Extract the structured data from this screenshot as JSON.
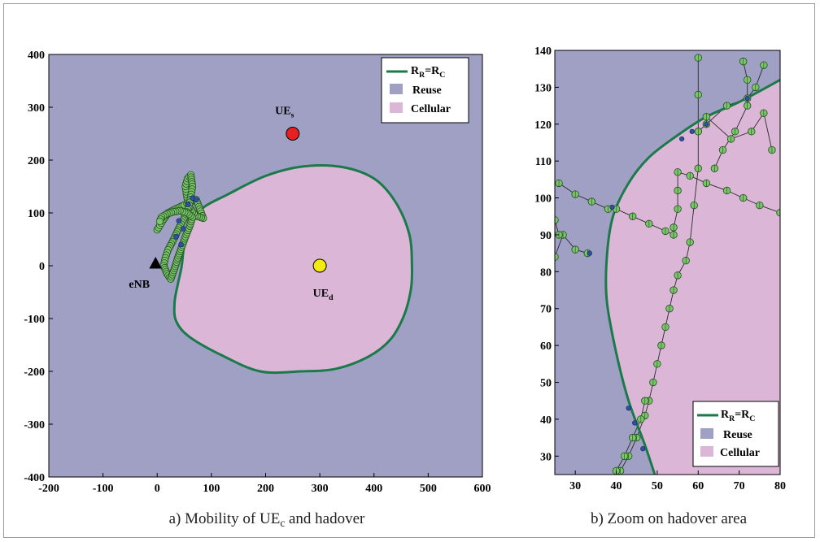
{
  "colors": {
    "reuse": "#a09fc4",
    "cellular": "#dcb6d6",
    "boundary": "#1a7a4a",
    "marker_green": "#7cc46a",
    "marker_blue": "#3050a0",
    "ue_s": "#e52121",
    "ue_d": "#f2ea10",
    "enb": "#000000"
  },
  "chart_data": [
    {
      "type": "scatter",
      "title": "",
      "caption": {
        "prefix": "a) Mobility of UE",
        "sub": "c",
        "suffix": " and hadover"
      },
      "xlim": [
        -200,
        600
      ],
      "ylim": [
        -400,
        400
      ],
      "xticks": [
        -200,
        -100,
        0,
        100,
        200,
        300,
        400,
        500,
        600
      ],
      "yticks": [
        -400,
        -300,
        -200,
        -100,
        0,
        100,
        200,
        300,
        400
      ],
      "regions": [
        {
          "name": "Reuse",
          "fill": "reuse"
        },
        {
          "name": "Cellular",
          "fill": "cellular"
        }
      ],
      "boundary_name": {
        "base": "R",
        "sub1": "R",
        "mid": "=R",
        "sub2": "C"
      },
      "boundary": [
        [
          470,
          0
        ],
        [
          465,
          60
        ],
        [
          440,
          120
        ],
        [
          400,
          165
        ],
        [
          340,
          187
        ],
        [
          270,
          188
        ],
        [
          200,
          170
        ],
        [
          130,
          135
        ],
        [
          85,
          110
        ],
        [
          62,
          80
        ],
        [
          50,
          40
        ],
        [
          45,
          -2
        ],
        [
          38,
          -35
        ],
        [
          32,
          -70
        ],
        [
          35,
          -105
        ],
        [
          60,
          -135
        ],
        [
          120,
          -170
        ],
        [
          190,
          -200
        ],
        [
          265,
          -200
        ],
        [
          330,
          -195
        ],
        [
          390,
          -172
        ],
        [
          430,
          -140
        ],
        [
          455,
          -95
        ],
        [
          468,
          -45
        ],
        [
          470,
          0
        ]
      ],
      "ue_s": {
        "label": {
          "base": "UE",
          "sub": "s"
        },
        "x": 250,
        "y": 250
      },
      "ue_d": {
        "label": {
          "base": "UE",
          "sub": "d"
        },
        "x": 300,
        "y": 0
      },
      "enb": {
        "label": "eNB",
        "x": -3,
        "y": 3
      },
      "trajectory": [
        [
          0,
          68
        ],
        [
          10,
          85
        ],
        [
          20,
          100
        ],
        [
          35,
          108
        ],
        [
          50,
          115
        ],
        [
          60,
          120
        ],
        [
          72,
          125
        ],
        [
          85,
          90
        ],
        [
          70,
          95
        ],
        [
          60,
          110
        ],
        [
          55,
          130
        ],
        [
          52,
          150
        ],
        [
          56,
          165
        ],
        [
          62,
          172
        ],
        [
          65,
          150
        ],
        [
          62,
          130
        ],
        [
          58,
          110
        ],
        [
          50,
          90
        ],
        [
          42,
          75
        ],
        [
          35,
          60
        ],
        [
          28,
          45
        ],
        [
          20,
          30
        ],
        [
          15,
          15
        ],
        [
          12,
          0
        ],
        [
          18,
          -15
        ],
        [
          25,
          -25
        ],
        [
          32,
          -5
        ],
        [
          38,
          15
        ],
        [
          45,
          35
        ],
        [
          52,
          55
        ],
        [
          60,
          75
        ],
        [
          65,
          92
        ],
        [
          55,
          100
        ],
        [
          42,
          104
        ],
        [
          30,
          102
        ],
        [
          18,
          98
        ],
        [
          8,
          92
        ],
        [
          3,
          80
        ]
      ],
      "handover_points": [
        [
          40,
          85
        ],
        [
          44,
          40
        ],
        [
          57,
          116
        ],
        [
          65,
          128
        ],
        [
          72,
          125
        ],
        [
          35,
          55
        ],
        [
          48,
          70
        ]
      ]
    },
    {
      "type": "scatter",
      "title": "",
      "caption": "b) Zoom on hadover area",
      "xlim": [
        25,
        80
      ],
      "ylim": [
        25,
        140
      ],
      "xticks": [
        30,
        40,
        50,
        60,
        70,
        80
      ],
      "yticks": [
        30,
        40,
        50,
        60,
        70,
        80,
        90,
        100,
        110,
        120,
        130,
        140
      ],
      "regions": [
        {
          "name": "Reuse",
          "fill": "reuse"
        },
        {
          "name": "Cellular",
          "fill": "cellular"
        }
      ],
      "boundary_name": {
        "base": "R",
        "sub1": "R",
        "mid": "=R",
        "sub2": "C"
      },
      "boundary": [
        [
          49.7,
          24
        ],
        [
          47,
          33
        ],
        [
          43,
          45
        ],
        [
          40,
          58
        ],
        [
          37.7,
          72
        ],
        [
          37.7,
          84
        ],
        [
          39.2,
          95
        ],
        [
          43,
          104
        ],
        [
          48,
          111
        ],
        [
          55,
          117
        ],
        [
          62,
          122
        ],
        [
          70,
          126
        ],
        [
          80,
          132
        ]
      ],
      "paths": [
        [
          [
            41,
            26
          ],
          [
            43,
            30
          ],
          [
            45,
            35
          ],
          [
            47,
            41
          ],
          [
            48,
            45
          ],
          [
            49,
            50
          ],
          [
            50,
            55
          ],
          [
            51,
            60
          ],
          [
            52,
            65
          ],
          [
            53,
            70
          ],
          [
            54,
            75
          ],
          [
            55,
            79
          ],
          [
            57,
            83
          ],
          [
            58,
            88
          ],
          [
            59,
            98
          ],
          [
            60,
            108
          ],
          [
            60,
            118
          ],
          [
            60,
            128
          ],
          [
            60,
            138
          ]
        ],
        [
          [
            40,
            26
          ],
          [
            42,
            30
          ],
          [
            44,
            35
          ],
          [
            46,
            40
          ],
          [
            47,
            45
          ]
        ],
        [
          [
            25,
            84
          ],
          [
            27,
            90
          ],
          [
            30,
            86
          ],
          [
            33,
            85
          ]
        ],
        [
          [
            25,
            94
          ],
          [
            26,
            90
          ]
        ],
        [
          [
            26,
            104
          ],
          [
            30,
            101
          ],
          [
            34,
            99
          ],
          [
            38,
            97
          ],
          [
            40,
            97
          ],
          [
            44,
            95
          ],
          [
            48,
            93
          ],
          [
            52,
            91
          ],
          [
            54,
            90
          ]
        ],
        [
          [
            54,
            92
          ],
          [
            55,
            97
          ],
          [
            55,
            102
          ],
          [
            55,
            107
          ],
          [
            58,
            106
          ],
          [
            62,
            104
          ],
          [
            67,
            102
          ],
          [
            71,
            100
          ],
          [
            75,
            98
          ],
          [
            80,
            96
          ]
        ],
        [
          [
            60,
            118
          ],
          [
            62,
            120
          ],
          [
            67,
            125
          ],
          [
            72,
            127
          ],
          [
            74,
            130
          ],
          [
            76,
            136
          ]
        ],
        [
          [
            64,
            108
          ],
          [
            66,
            113
          ],
          [
            69,
            118
          ],
          [
            72,
            125
          ],
          [
            72,
            132
          ],
          [
            71,
            137
          ]
        ],
        [
          [
            62,
            122
          ],
          [
            68,
            116
          ],
          [
            73,
            118
          ],
          [
            76,
            123
          ],
          [
            78,
            113
          ]
        ]
      ],
      "handover_points": [
        [
          43,
          43
        ],
        [
          44.5,
          39
        ],
        [
          46.5,
          32
        ],
        [
          33.5,
          85
        ],
        [
          39,
          97.5
        ],
        [
          56,
          116
        ],
        [
          58.5,
          118
        ],
        [
          62,
          120
        ],
        [
          72,
          127
        ]
      ]
    }
  ]
}
